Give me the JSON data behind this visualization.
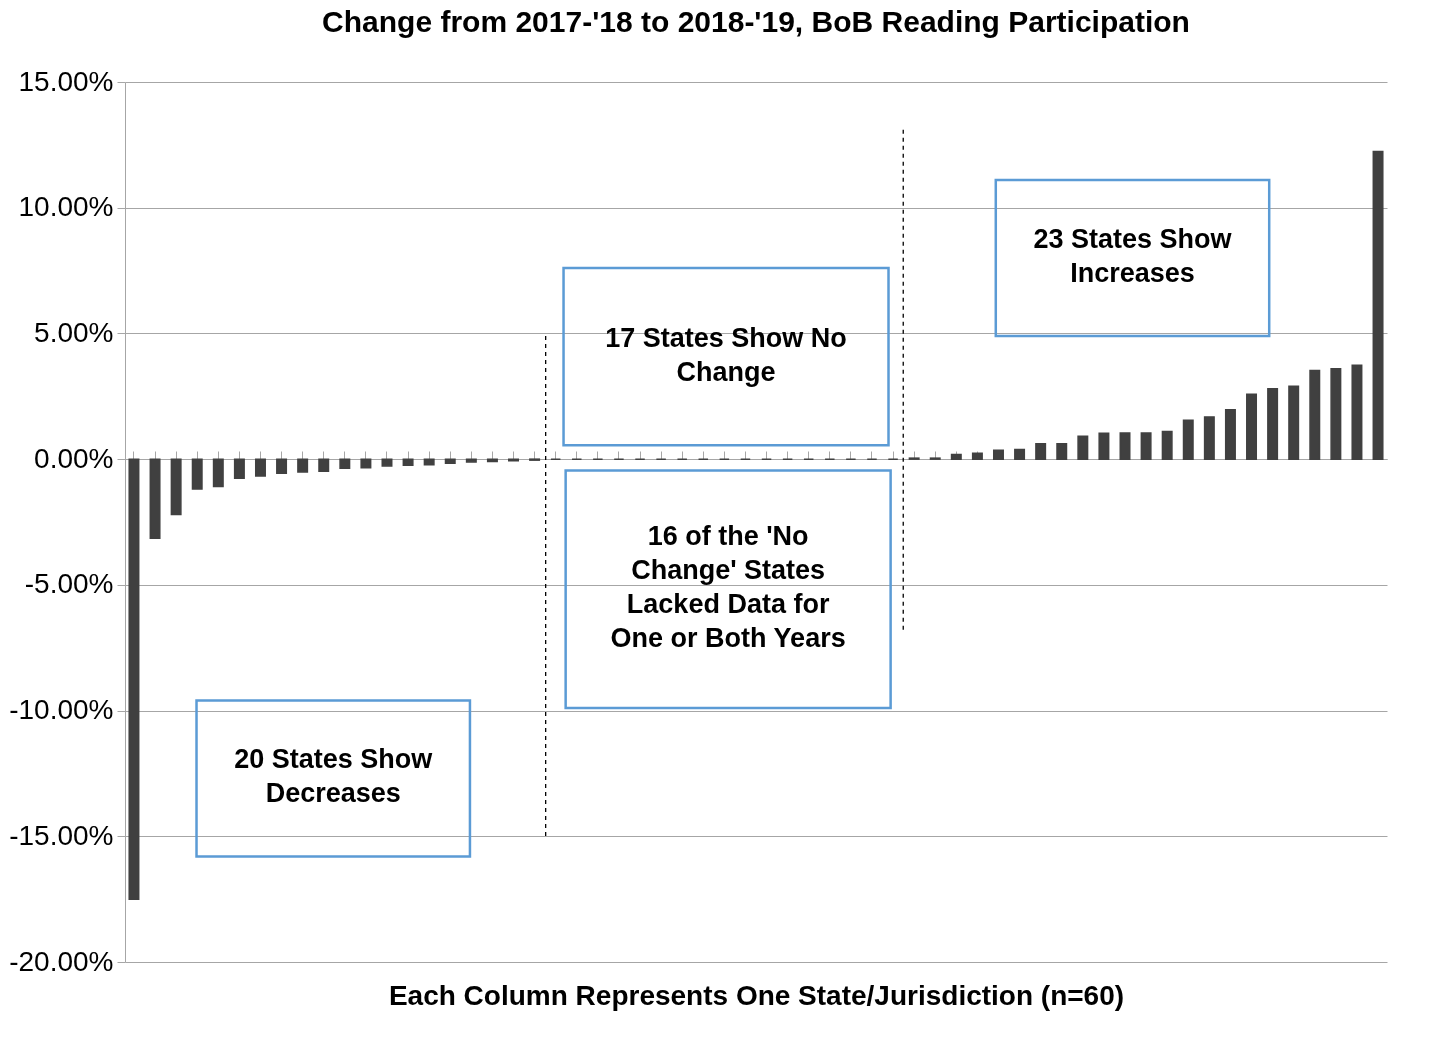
{
  "chart_data": {
    "type": "bar",
    "title": "Change from 2017-'18 to 2018-'19, BoB Reading Participation",
    "xlabel": "Each Column Represents One State/Jurisdiction (n=60)",
    "categories": [
      null,
      null,
      null,
      null,
      null,
      null,
      null,
      null,
      null,
      null,
      null,
      null,
      null,
      null,
      null,
      null,
      null,
      null,
      null,
      null,
      null,
      null,
      null,
      null,
      null,
      null,
      null,
      null,
      null,
      null,
      null,
      null,
      null,
      null,
      null,
      null,
      null,
      null,
      null,
      null,
      null,
      null,
      null,
      null,
      null,
      null,
      null,
      null,
      null,
      null,
      null,
      null,
      null,
      null,
      null,
      null,
      null,
      null,
      null,
      null
    ],
    "series": [
      {
        "color": "#404040",
        "values": [
          -17.5,
          -3.15,
          -2.2,
          -1.19,
          -1.09,
          -0.76,
          -0.67,
          -0.56,
          -0.51,
          -0.48,
          -0.36,
          -0.34,
          -0.27,
          -0.24,
          -0.22,
          -0.16,
          -0.11,
          -0.09,
          -0.06,
          -0.04,
          0,
          0,
          0,
          0,
          0,
          0,
          0,
          0,
          0,
          0,
          0,
          0,
          0,
          0,
          0,
          0,
          0,
          0.04,
          0.04,
          0.18,
          0.23,
          0.35,
          0.38,
          0.61,
          0.61,
          0.91,
          1.03,
          1.04,
          1.04,
          1.1,
          1.55,
          1.68,
          1.96,
          2.58,
          2.8,
          2.9,
          3.53,
          3.6,
          3.73,
          12.24
        ]
      }
    ],
    "ylim": [
      -20,
      15
    ],
    "yticks": [
      {
        "value": -20,
        "label": "-20.00%"
      },
      {
        "value": -15,
        "label": "-15.00%"
      },
      {
        "value": -10,
        "label": "-10.00%"
      },
      {
        "value": -5,
        "label": "-5.00%"
      },
      {
        "value": 0,
        "label": "0.00%"
      },
      {
        "value": 5,
        "label": "5.00%"
      },
      {
        "value": 10,
        "label": "10.00%"
      },
      {
        "value": 15,
        "label": "15.00%"
      }
    ],
    "tick_labels": "y",
    "grid": "y",
    "annotations": [
      "20 States Show Decreases",
      "17 States Show No Change",
      "16 of the 'No Change' States Lacked Data for One or Both Years",
      "23 States Show Increases"
    ]
  }
}
